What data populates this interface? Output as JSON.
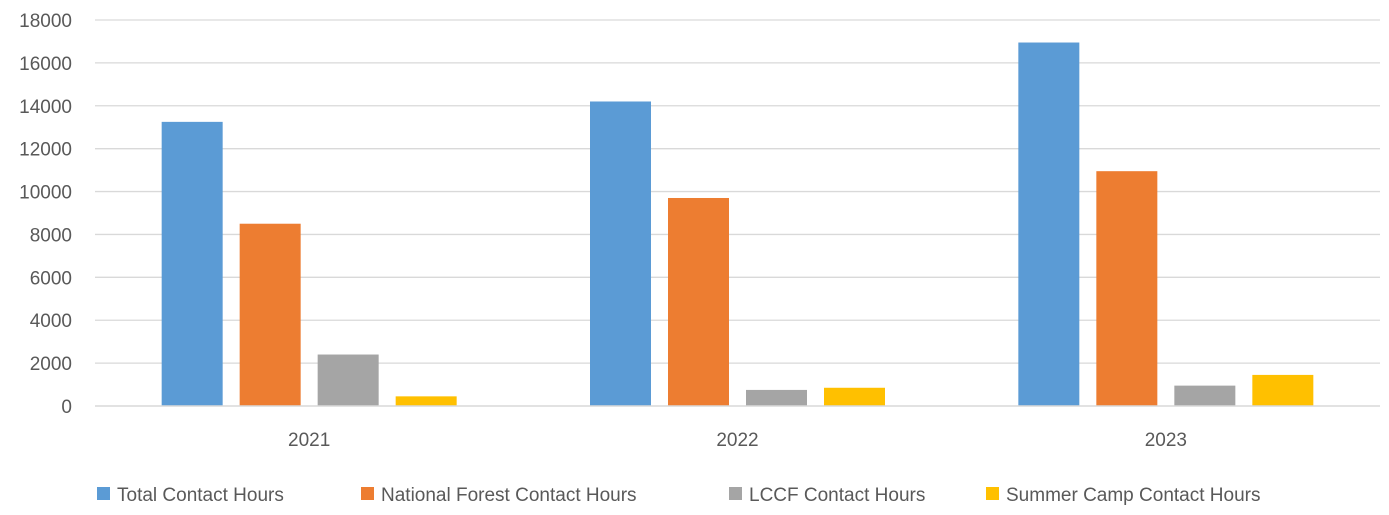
{
  "chart_data": {
    "type": "bar",
    "title": "",
    "xlabel": "",
    "ylabel": "",
    "categories": [
      "2021",
      "2022",
      "2023"
    ],
    "series": [
      {
        "name": "Total Contact Hours",
        "color": "#5B9BD5",
        "values": [
          13250,
          14200,
          16950
        ]
      },
      {
        "name": "National Forest Contact Hours",
        "color": "#ED7D31",
        "values": [
          8500,
          9700,
          10950
        ]
      },
      {
        "name": "LCCF Contact Hours",
        "color": "#A5A5A5",
        "values": [
          2400,
          750,
          950
        ]
      },
      {
        "name": "Summer Camp Contact Hours",
        "color": "#FFC000",
        "values": [
          450,
          850,
          1450
        ]
      }
    ],
    "ylim": [
      0,
      18000
    ],
    "yticks": [
      0,
      2000,
      4000,
      6000,
      8000,
      10000,
      12000,
      14000,
      16000,
      18000
    ],
    "grid": true,
    "legend_position": "bottom"
  }
}
